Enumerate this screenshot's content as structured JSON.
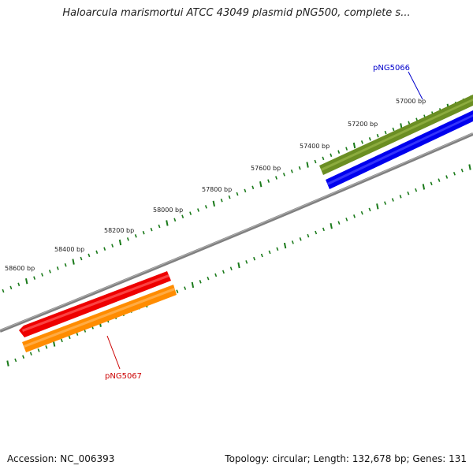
{
  "title": "Haloarcula marismortui ATCC 43049 plasmid pNG500, complete s...",
  "footer": {
    "accession": "Accession: NC_006393",
    "summary": "Topology: circular; Length: 132,678 bp; Genes: 131"
  },
  "ruler": {
    "labels": [
      "57000 bp",
      "57200 bp",
      "57400 bp",
      "57600 bp",
      "57800 bp",
      "58000 bp",
      "58200 bp",
      "58400 bp",
      "58600 bp"
    ]
  },
  "genes": [
    {
      "name": "pNG5066",
      "label_color": "#0000cc"
    },
    {
      "name": "pNG5067",
      "label_color": "#cc0000"
    }
  ],
  "colors": {
    "tick": "#1a7a1a",
    "backbone": "#808080",
    "gene_top_forward": "#6b8e23",
    "gene_bottom_forward": "#0000ee",
    "gene_top_reverse": "#ee0000",
    "gene_bottom_reverse": "#ff8c00"
  }
}
